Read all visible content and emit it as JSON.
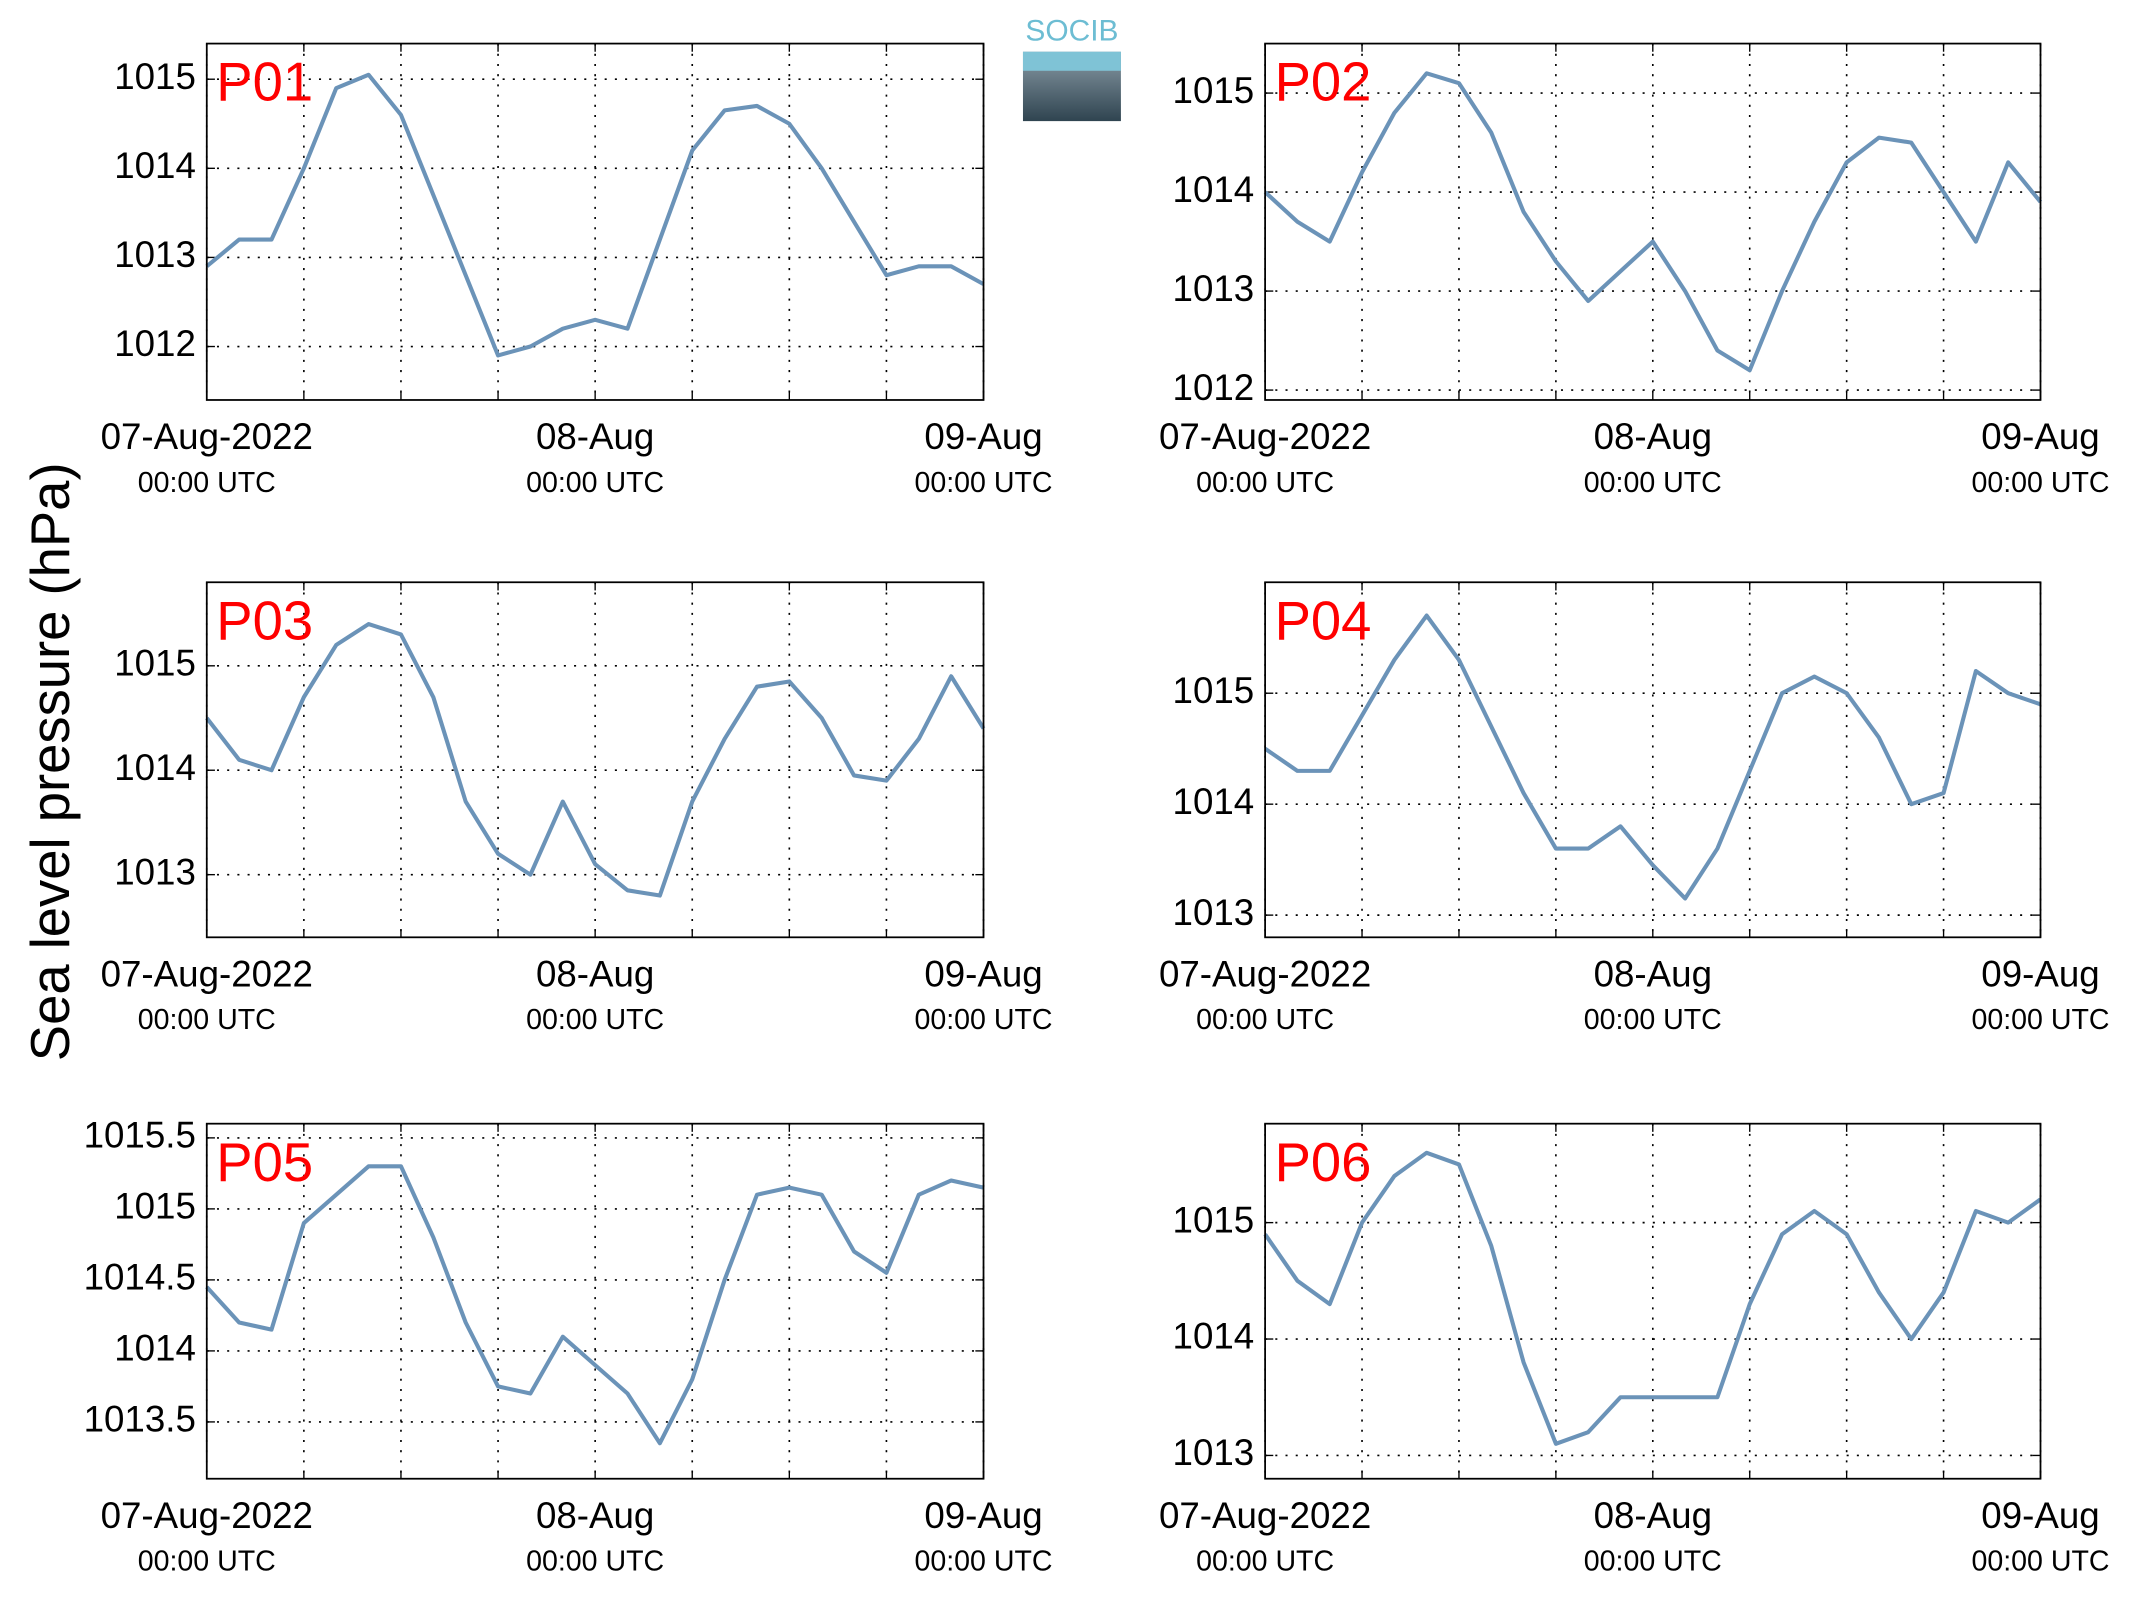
{
  "ylabel": "Sea level pressure (hPa)",
  "logo": "SOCIB",
  "chart_data": [
    {
      "type": "line",
      "title": "P01",
      "color": "#6b93b8",
      "x": [
        "2022-08-07T00:00Z",
        "2022-08-07T02:00Z",
        "2022-08-07T04:00Z",
        "2022-08-07T06:00Z",
        "2022-08-07T08:00Z",
        "2022-08-07T10:00Z",
        "2022-08-07T12:00Z",
        "2022-08-07T14:00Z",
        "2022-08-07T16:00Z",
        "2022-08-07T18:00Z",
        "2022-08-07T20:00Z",
        "2022-08-07T22:00Z",
        "2022-08-08T00:00Z",
        "2022-08-08T02:00Z",
        "2022-08-08T04:00Z",
        "2022-08-08T06:00Z",
        "2022-08-08T08:00Z",
        "2022-08-08T10:00Z",
        "2022-08-08T12:00Z",
        "2022-08-08T14:00Z",
        "2022-08-08T16:00Z",
        "2022-08-08T18:00Z",
        "2022-08-08T20:00Z",
        "2022-08-08T22:00Z",
        "2022-08-09T00:00Z"
      ],
      "values": [
        1012.9,
        1013.2,
        1013.2,
        1014.0,
        1014.9,
        1015.05,
        1014.6,
        1013.7,
        1012.8,
        1011.9,
        1012.0,
        1012.2,
        1012.3,
        1012.2,
        1013.2,
        1014.2,
        1014.65,
        1014.7,
        1014.5,
        1014.0,
        1013.4,
        1012.8,
        1012.9,
        1012.9,
        1012.7
      ],
      "xlim": [
        "2022-08-07T00:00Z",
        "2022-08-09T00:00Z"
      ],
      "xticks": [
        {
          "value": "2022-08-07T00:00Z",
          "label": [
            "07-Aug-2022",
            "00:00 UTC"
          ]
        },
        {
          "value": "2022-08-08T00:00Z",
          "label": [
            "08-Aug",
            "00:00 UTC"
          ]
        },
        {
          "value": "2022-08-09T00:00Z",
          "label": [
            "09-Aug",
            "00:00 UTC"
          ]
        }
      ],
      "xminor": [
        "2022-08-07T06:00Z",
        "2022-08-07T12:00Z",
        "2022-08-07T18:00Z",
        "2022-08-08T06:00Z",
        "2022-08-08T12:00Z",
        "2022-08-08T18:00Z"
      ],
      "ylim": [
        1011.4,
        1015.4
      ],
      "yticks": [
        1012,
        1013,
        1014,
        1015
      ],
      "grid": true
    },
    {
      "type": "line",
      "title": "P02",
      "color": "#6b93b8",
      "x": [
        "2022-08-07T00:00Z",
        "2022-08-07T02:00Z",
        "2022-08-07T04:00Z",
        "2022-08-07T06:00Z",
        "2022-08-07T08:00Z",
        "2022-08-07T10:00Z",
        "2022-08-07T12:00Z",
        "2022-08-07T14:00Z",
        "2022-08-07T16:00Z",
        "2022-08-07T18:00Z",
        "2022-08-07T20:00Z",
        "2022-08-07T22:00Z",
        "2022-08-08T00:00Z",
        "2022-08-08T02:00Z",
        "2022-08-08T04:00Z",
        "2022-08-08T06:00Z",
        "2022-08-08T08:00Z",
        "2022-08-08T10:00Z",
        "2022-08-08T12:00Z",
        "2022-08-08T14:00Z",
        "2022-08-08T16:00Z",
        "2022-08-08T18:00Z",
        "2022-08-08T20:00Z",
        "2022-08-08T22:00Z",
        "2022-08-09T00:00Z"
      ],
      "values": [
        1014.0,
        1013.7,
        1013.5,
        1014.2,
        1014.8,
        1015.2,
        1015.1,
        1014.6,
        1013.8,
        1013.3,
        1012.9,
        1013.2,
        1013.5,
        1013.0,
        1012.4,
        1012.2,
        1013.0,
        1013.7,
        1014.3,
        1014.55,
        1014.5,
        1014.0,
        1013.5,
        1014.3,
        1013.9
      ],
      "xlim": [
        "2022-08-07T00:00Z",
        "2022-08-09T00:00Z"
      ],
      "xticks": [
        {
          "value": "2022-08-07T00:00Z",
          "label": [
            "07-Aug-2022",
            "00:00 UTC"
          ]
        },
        {
          "value": "2022-08-08T00:00Z",
          "label": [
            "08-Aug",
            "00:00 UTC"
          ]
        },
        {
          "value": "2022-08-09T00:00Z",
          "label": [
            "09-Aug",
            "00:00 UTC"
          ]
        }
      ],
      "xminor": [
        "2022-08-07T06:00Z",
        "2022-08-07T12:00Z",
        "2022-08-07T18:00Z",
        "2022-08-08T06:00Z",
        "2022-08-08T12:00Z",
        "2022-08-08T18:00Z"
      ],
      "ylim": [
        1011.9,
        1015.5
      ],
      "yticks": [
        1012,
        1013,
        1014,
        1015
      ],
      "grid": true
    },
    {
      "type": "line",
      "title": "P03",
      "color": "#6b93b8",
      "x": [
        "2022-08-07T00:00Z",
        "2022-08-07T02:00Z",
        "2022-08-07T04:00Z",
        "2022-08-07T06:00Z",
        "2022-08-07T08:00Z",
        "2022-08-07T10:00Z",
        "2022-08-07T12:00Z",
        "2022-08-07T14:00Z",
        "2022-08-07T16:00Z",
        "2022-08-07T18:00Z",
        "2022-08-07T20:00Z",
        "2022-08-07T22:00Z",
        "2022-08-08T00:00Z",
        "2022-08-08T02:00Z",
        "2022-08-08T04:00Z",
        "2022-08-08T06:00Z",
        "2022-08-08T08:00Z",
        "2022-08-08T10:00Z",
        "2022-08-08T12:00Z",
        "2022-08-08T14:00Z",
        "2022-08-08T16:00Z",
        "2022-08-08T18:00Z",
        "2022-08-08T20:00Z",
        "2022-08-08T22:00Z",
        "2022-08-09T00:00Z"
      ],
      "values": [
        1014.5,
        1014.1,
        1014.0,
        1014.7,
        1015.2,
        1015.4,
        1015.3,
        1014.7,
        1013.7,
        1013.2,
        1013.0,
        1013.7,
        1013.1,
        1012.85,
        1012.8,
        1013.7,
        1014.3,
        1014.8,
        1014.85,
        1014.5,
        1013.95,
        1013.9,
        1014.3,
        1014.9,
        1014.4
      ],
      "xlim": [
        "2022-08-07T00:00Z",
        "2022-08-09T00:00Z"
      ],
      "xticks": [
        {
          "value": "2022-08-07T00:00Z",
          "label": [
            "07-Aug-2022",
            "00:00 UTC"
          ]
        },
        {
          "value": "2022-08-08T00:00Z",
          "label": [
            "08-Aug",
            "00:00 UTC"
          ]
        },
        {
          "value": "2022-08-09T00:00Z",
          "label": [
            "09-Aug",
            "00:00 UTC"
          ]
        }
      ],
      "xminor": [
        "2022-08-07T06:00Z",
        "2022-08-07T12:00Z",
        "2022-08-07T18:00Z",
        "2022-08-08T06:00Z",
        "2022-08-08T12:00Z",
        "2022-08-08T18:00Z"
      ],
      "ylim": [
        1012.4,
        1015.8
      ],
      "yticks": [
        1013,
        1014,
        1015
      ],
      "grid": true
    },
    {
      "type": "line",
      "title": "P04",
      "color": "#6b93b8",
      "x": [
        "2022-08-07T00:00Z",
        "2022-08-07T02:00Z",
        "2022-08-07T04:00Z",
        "2022-08-07T06:00Z",
        "2022-08-07T08:00Z",
        "2022-08-07T10:00Z",
        "2022-08-07T12:00Z",
        "2022-08-07T14:00Z",
        "2022-08-07T16:00Z",
        "2022-08-07T18:00Z",
        "2022-08-07T20:00Z",
        "2022-08-07T22:00Z",
        "2022-08-08T00:00Z",
        "2022-08-08T02:00Z",
        "2022-08-08T04:00Z",
        "2022-08-08T06:00Z",
        "2022-08-08T08:00Z",
        "2022-08-08T10:00Z",
        "2022-08-08T12:00Z",
        "2022-08-08T14:00Z",
        "2022-08-08T16:00Z",
        "2022-08-08T18:00Z",
        "2022-08-08T20:00Z",
        "2022-08-08T22:00Z",
        "2022-08-09T00:00Z"
      ],
      "values": [
        1014.5,
        1014.3,
        1014.3,
        1014.8,
        1015.3,
        1015.7,
        1015.3,
        1014.7,
        1014.1,
        1013.6,
        1013.6,
        1013.8,
        1013.45,
        1013.15,
        1013.6,
        1014.3,
        1015.0,
        1015.15,
        1015.0,
        1014.6,
        1014.0,
        1014.1,
        1015.2,
        1015.0,
        1014.9
      ],
      "xlim": [
        "2022-08-07T00:00Z",
        "2022-08-09T00:00Z"
      ],
      "xticks": [
        {
          "value": "2022-08-07T00:00Z",
          "label": [
            "07-Aug-2022",
            "00:00 UTC"
          ]
        },
        {
          "value": "2022-08-08T00:00Z",
          "label": [
            "08-Aug",
            "00:00 UTC"
          ]
        },
        {
          "value": "2022-08-09T00:00Z",
          "label": [
            "09-Aug",
            "00:00 UTC"
          ]
        }
      ],
      "xminor": [
        "2022-08-07T06:00Z",
        "2022-08-07T12:00Z",
        "2022-08-07T18:00Z",
        "2022-08-08T06:00Z",
        "2022-08-08T12:00Z",
        "2022-08-08T18:00Z"
      ],
      "ylim": [
        1012.8,
        1016
      ],
      "yticks": [
        1013,
        1014,
        1015
      ],
      "grid": true
    },
    {
      "type": "line",
      "title": "P05",
      "color": "#6b93b8",
      "x": [
        "2022-08-07T00:00Z",
        "2022-08-07T02:00Z",
        "2022-08-07T04:00Z",
        "2022-08-07T06:00Z",
        "2022-08-07T08:00Z",
        "2022-08-07T10:00Z",
        "2022-08-07T12:00Z",
        "2022-08-07T14:00Z",
        "2022-08-07T16:00Z",
        "2022-08-07T18:00Z",
        "2022-08-07T20:00Z",
        "2022-08-07T22:00Z",
        "2022-08-08T00:00Z",
        "2022-08-08T02:00Z",
        "2022-08-08T04:00Z",
        "2022-08-08T06:00Z",
        "2022-08-08T08:00Z",
        "2022-08-08T10:00Z",
        "2022-08-08T12:00Z",
        "2022-08-08T14:00Z",
        "2022-08-08T16:00Z",
        "2022-08-08T18:00Z",
        "2022-08-08T20:00Z",
        "2022-08-08T22:00Z",
        "2022-08-09T00:00Z"
      ],
      "values": [
        1014.45,
        1014.2,
        1014.15,
        1014.9,
        1015.1,
        1015.3,
        1015.3,
        1014.8,
        1014.2,
        1013.75,
        1013.7,
        1014.1,
        1013.9,
        1013.7,
        1013.35,
        1013.8,
        1014.5,
        1015.1,
        1015.15,
        1015.1,
        1014.7,
        1014.55,
        1015.1,
        1015.2,
        1015.15
      ],
      "xlim": [
        "2022-08-07T00:00Z",
        "2022-08-09T00:00Z"
      ],
      "xticks": [
        {
          "value": "2022-08-07T00:00Z",
          "label": [
            "07-Aug-2022",
            "00:00 UTC"
          ]
        },
        {
          "value": "2022-08-08T00:00Z",
          "label": [
            "08-Aug",
            "00:00 UTC"
          ]
        },
        {
          "value": "2022-08-09T00:00Z",
          "label": [
            "09-Aug",
            "00:00 UTC"
          ]
        }
      ],
      "xminor": [
        "2022-08-07T06:00Z",
        "2022-08-07T12:00Z",
        "2022-08-07T18:00Z",
        "2022-08-08T06:00Z",
        "2022-08-08T12:00Z",
        "2022-08-08T18:00Z"
      ],
      "ylim": [
        1013.1,
        1015.6
      ],
      "yticks": [
        1013.5,
        1014,
        1014.5,
        1015,
        1015.5
      ],
      "grid": true
    },
    {
      "type": "line",
      "title": "P06",
      "color": "#6b93b8",
      "x": [
        "2022-08-07T00:00Z",
        "2022-08-07T02:00Z",
        "2022-08-07T04:00Z",
        "2022-08-07T06:00Z",
        "2022-08-07T08:00Z",
        "2022-08-07T10:00Z",
        "2022-08-07T12:00Z",
        "2022-08-07T14:00Z",
        "2022-08-07T16:00Z",
        "2022-08-07T18:00Z",
        "2022-08-07T20:00Z",
        "2022-08-07T22:00Z",
        "2022-08-08T00:00Z",
        "2022-08-08T02:00Z",
        "2022-08-08T04:00Z",
        "2022-08-08T06:00Z",
        "2022-08-08T08:00Z",
        "2022-08-08T10:00Z",
        "2022-08-08T12:00Z",
        "2022-08-08T14:00Z",
        "2022-08-08T16:00Z",
        "2022-08-08T18:00Z",
        "2022-08-08T20:00Z",
        "2022-08-08T22:00Z",
        "2022-08-09T00:00Z"
      ],
      "values": [
        1014.9,
        1014.5,
        1014.3,
        1015.0,
        1015.4,
        1015.6,
        1015.5,
        1014.8,
        1013.8,
        1013.1,
        1013.2,
        1013.5,
        1013.5,
        1013.5,
        1013.5,
        1014.3,
        1014.9,
        1015.1,
        1014.9,
        1014.4,
        1014.0,
        1014.4,
        1015.1,
        1015.0,
        1015.2
      ],
      "xlim": [
        "2022-08-07T00:00Z",
        "2022-08-09T00:00Z"
      ],
      "xticks": [
        {
          "value": "2022-08-07T00:00Z",
          "label": [
            "07-Aug-2022",
            "00:00 UTC"
          ]
        },
        {
          "value": "2022-08-08T00:00Z",
          "label": [
            "08-Aug",
            "00:00 UTC"
          ]
        },
        {
          "value": "2022-08-09T00:00Z",
          "label": [
            "09-Aug",
            "00:00 UTC"
          ]
        }
      ],
      "xminor": [
        "2022-08-07T06:00Z",
        "2022-08-07T12:00Z",
        "2022-08-07T18:00Z",
        "2022-08-08T06:00Z",
        "2022-08-08T12:00Z",
        "2022-08-08T18:00Z"
      ],
      "ylim": [
        1012.8,
        1015.85
      ],
      "yticks": [
        1013,
        1014,
        1015
      ],
      "grid": true
    }
  ]
}
